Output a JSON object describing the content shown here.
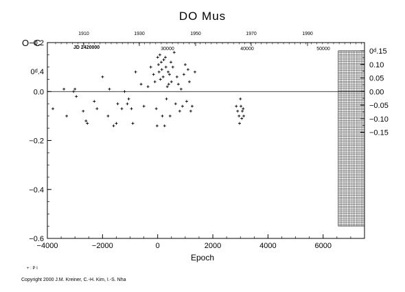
{
  "header": {
    "title": "DO Mus",
    "y_axis_label": "O−C",
    "x_axis_label": "Epoch",
    "jd_label": "JD 2420000",
    "legend": "+ : P I",
    "copyright": "Copyright 2000 J.M. Kreiner, C.-H. Kim, I.-S. Nha"
  },
  "chart_data": {
    "type": "scatter",
    "title": "DO Mus",
    "xlabel": "Epoch",
    "ylabel": "O−C",
    "xlim": [
      -4000,
      7500
    ],
    "ylim": [
      -0.6,
      0.2
    ],
    "x_ticks": [
      "−4000",
      "−2000",
      "0",
      "2000",
      "4000",
      "6000"
    ],
    "y_ticks_left": [
      "−0.6",
      "−0.4",
      "−0.2",
      "0.0",
      "0.2",
      "0ᵈ.4"
    ],
    "y_ticks_right": [
      "−0.15",
      "−0.10",
      "−0.05",
      "0.00",
      "0.05",
      "0.10",
      "0ᵈ.15"
    ],
    "top_year_ticks": [
      "1910",
      "1930",
      "1950",
      "1970",
      "1990"
    ],
    "top_jd_ticks": [
      "30000",
      "40000",
      "50000"
    ],
    "grid": false,
    "zero_line": 0,
    "hatched_region_x": [
      6550,
      7500
    ],
    "series": [
      {
        "name": "P I",
        "marker": "plus",
        "points": [
          [
            -3800,
            -0.07
          ],
          [
            -3400,
            0.01
          ],
          [
            -3300,
            -0.1
          ],
          [
            -3050,
            0.0
          ],
          [
            -3000,
            0.01
          ],
          [
            -2950,
            -0.02
          ],
          [
            -2700,
            -0.08
          ],
          [
            -2600,
            -0.12
          ],
          [
            -2550,
            -0.13
          ],
          [
            -2300,
            -0.04
          ],
          [
            -2200,
            -0.07
          ],
          [
            -2000,
            0.06
          ],
          [
            -1800,
            -0.1
          ],
          [
            -1750,
            0.01
          ],
          [
            -1600,
            -0.14
          ],
          [
            -1500,
            -0.13
          ],
          [
            -1450,
            -0.05
          ],
          [
            -1300,
            -0.07
          ],
          [
            -1200,
            0.0
          ],
          [
            -1100,
            -0.05
          ],
          [
            -1050,
            -0.03
          ],
          [
            -950,
            -0.07
          ],
          [
            -900,
            -0.13
          ],
          [
            -800,
            0.08
          ],
          [
            -600,
            0.03
          ],
          [
            -500,
            -0.06
          ],
          [
            -350,
            0.02
          ],
          [
            -250,
            0.1
          ],
          [
            -150,
            0.07
          ],
          [
            -100,
            0.04
          ],
          [
            -50,
            -0.07
          ],
          [
            -20,
            -0.14
          ],
          [
            0,
            0.14
          ],
          [
            30,
            0.11
          ],
          [
            50,
            0.08
          ],
          [
            80,
            0.15
          ],
          [
            100,
            0.05
          ],
          [
            130,
            0.12
          ],
          [
            150,
            0.09
          ],
          [
            170,
            -0.1
          ],
          [
            200,
            0.06
          ],
          [
            220,
            0.13
          ],
          [
            250,
            -0.14
          ],
          [
            280,
            0.14
          ],
          [
            300,
            0.1
          ],
          [
            320,
            -0.03
          ],
          [
            350,
            0.02
          ],
          [
            380,
            0.08
          ],
          [
            400,
            0.03
          ],
          [
            430,
            0.07
          ],
          [
            450,
            -0.1
          ],
          [
            480,
            0.12
          ],
          [
            500,
            0.04
          ],
          [
            550,
            0.1
          ],
          [
            600,
            0.16
          ],
          [
            650,
            -0.05
          ],
          [
            700,
            0.06
          ],
          [
            750,
            0.03
          ],
          [
            800,
            -0.08
          ],
          [
            850,
            0.01
          ],
          [
            900,
            -0.06
          ],
          [
            950,
            0.07
          ],
          [
            1000,
            0.11
          ],
          [
            1050,
            -0.04
          ],
          [
            1100,
            0.09
          ],
          [
            1150,
            0.04
          ],
          [
            1200,
            -0.08
          ],
          [
            1250,
            -0.06
          ],
          [
            1350,
            0.08
          ],
          [
            2850,
            -0.06
          ],
          [
            2900,
            -0.08
          ],
          [
            2950,
            -0.1
          ],
          [
            2970,
            -0.13
          ],
          [
            3000,
            -0.03
          ],
          [
            3020,
            -0.06
          ],
          [
            3050,
            -0.11
          ],
          [
            3070,
            -0.08
          ],
          [
            3100,
            -0.07
          ],
          [
            3120,
            -0.1
          ]
        ]
      }
    ]
  }
}
